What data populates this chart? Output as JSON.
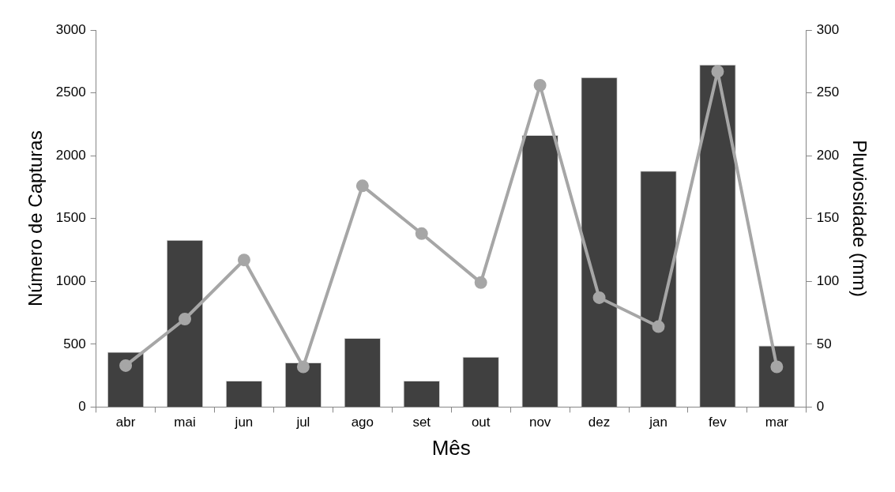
{
  "chart_data": {
    "type": "bar",
    "xlabel": "Mês",
    "ylabel": "Número de Capturas",
    "y2label": "Pluviosidade (mm)",
    "categories": [
      "abr",
      "mai",
      "jun",
      "jul",
      "ago",
      "set",
      "out",
      "nov",
      "dez",
      "jan",
      "fev",
      "mar"
    ],
    "series": [
      {
        "color": "#404040",
        "values": [
          440,
          1330,
          210,
          355,
          550,
          210,
          400,
          2165,
          2625,
          1880,
          2725,
          490
        ]
      },
      {
        "type": "line",
        "axis": "y2",
        "color": "#a6a6a6",
        "marker": "circle",
        "values": [
          33,
          70,
          117,
          32,
          176,
          138,
          99,
          256,
          87,
          64,
          267,
          32
        ]
      }
    ],
    "ylim": [
      0,
      3000
    ],
    "yticks": [
      0,
      500,
      1000,
      1500,
      2000,
      2500,
      3000
    ],
    "y2lim": [
      0,
      300
    ],
    "y2ticks": [
      0,
      50,
      100,
      150,
      200,
      250,
      300
    ],
    "grid": false,
    "legend": false
  }
}
